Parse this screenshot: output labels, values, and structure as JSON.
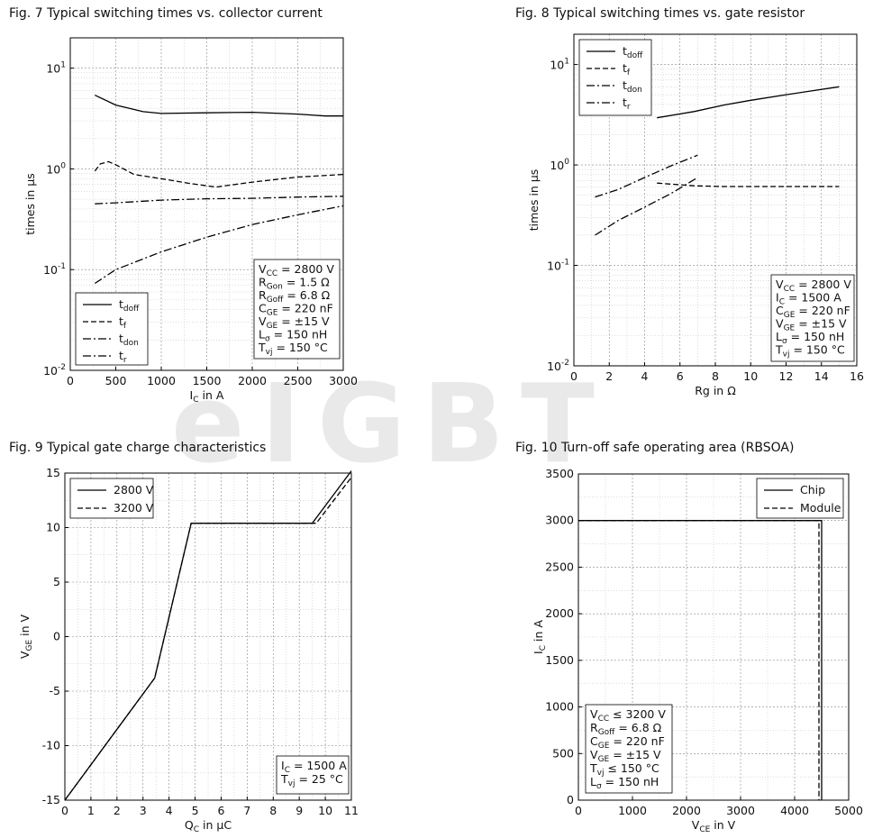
{
  "watermark": "eIGBT",
  "chart_data": [
    {
      "type": "line",
      "title": "Fig. 7  Typical switching times vs. collector current",
      "xlabel": "I_C in A",
      "ylabel": "times in µs",
      "yscale": "log",
      "xlim": [
        0,
        3000
      ],
      "ylim": [
        0.01,
        20
      ],
      "x_ticks": [
        "0",
        "500",
        "1000",
        "1500",
        "2000",
        "2500",
        "3000"
      ],
      "x_tick_values": [
        0,
        500,
        1000,
        1500,
        2000,
        2500,
        3000
      ],
      "y_ticks": [
        "10^-2",
        "10^-1",
        "10^0",
        "10^1"
      ],
      "grid": true,
      "legend_position": "bottom-left",
      "series": [
        {
          "name": "t_doff",
          "style": "solid",
          "x": [
            270,
            500,
            800,
            1000,
            1500,
            2000,
            2500,
            2800,
            3000
          ],
          "y": [
            5.4,
            4.3,
            3.7,
            3.55,
            3.6,
            3.65,
            3.5,
            3.35,
            3.35
          ]
        },
        {
          "name": "t_f",
          "style": "dash",
          "x": [
            270,
            330,
            420,
            500,
            700,
            1000,
            1300,
            1600,
            2000,
            2500,
            3000
          ],
          "y": [
            0.95,
            1.12,
            1.18,
            1.1,
            0.88,
            0.8,
            0.72,
            0.66,
            0.74,
            0.83,
            0.88
          ]
        },
        {
          "name": "t_don",
          "style": "dashdot",
          "x": [
            270,
            500,
            1000,
            1500,
            2000,
            2500,
            3000
          ],
          "y": [
            0.45,
            0.46,
            0.49,
            0.505,
            0.51,
            0.525,
            0.535
          ]
        },
        {
          "name": "t_r",
          "style": "dashdot",
          "x": [
            270,
            500,
            1000,
            1500,
            2000,
            2500,
            3000
          ],
          "y": [
            0.073,
            0.1,
            0.15,
            0.21,
            0.28,
            0.35,
            0.43
          ]
        }
      ],
      "annotation": [
        {
          "main": "V",
          "sub": "CC",
          "rest": " = 2800 V"
        },
        {
          "main": "R",
          "sub": "Gon",
          "rest": " = 1.5 Ω"
        },
        {
          "main": "R",
          "sub": "Goff",
          "rest": " = 6.8 Ω"
        },
        {
          "main": "C",
          "sub": "GE",
          "rest": " = 220 nF"
        },
        {
          "main": "V",
          "sub": "GE",
          "rest": " = ±15 V"
        },
        {
          "main": "L",
          "sub": "σ",
          "rest": " = 150 nH"
        },
        {
          "main": "T",
          "sub": "vj",
          "rest": " = 150 °C"
        }
      ]
    },
    {
      "type": "line",
      "title": "Fig. 8  Typical switching times vs. gate resistor",
      "xlabel": "Rg in Ω",
      "ylabel": "times in µs",
      "yscale": "log",
      "xlim": [
        0,
        16
      ],
      "ylim": [
        0.01,
        20
      ],
      "x_ticks": [
        "0",
        "2",
        "4",
        "6",
        "8",
        "10",
        "12",
        "14",
        "16"
      ],
      "x_tick_values": [
        0,
        2,
        4,
        6,
        8,
        10,
        12,
        14,
        16
      ],
      "y_ticks": [
        "10^-2",
        "10^-1",
        "10^0",
        "10^1"
      ],
      "grid": true,
      "legend_position": "top-left",
      "series": [
        {
          "name": "t_doff",
          "style": "solid",
          "x": [
            4.7,
            6.8,
            8.5,
            10,
            12,
            15
          ],
          "y": [
            2.95,
            3.4,
            3.95,
            4.4,
            5,
            6
          ]
        },
        {
          "name": "t_f",
          "style": "dash",
          "x": [
            4.7,
            6.8,
            8.5,
            10,
            12,
            15
          ],
          "y": [
            0.66,
            0.62,
            0.61,
            0.61,
            0.61,
            0.61
          ]
        },
        {
          "name": "t_don",
          "style": "dashdot",
          "x": [
            1.2,
            2.5,
            4,
            5.5,
            7
          ],
          "y": [
            0.48,
            0.57,
            0.75,
            0.98,
            1.25
          ]
        },
        {
          "name": "t_r",
          "style": "dashdot",
          "x": [
            1.2,
            2.5,
            4,
            5.5,
            7
          ],
          "y": [
            0.2,
            0.28,
            0.38,
            0.52,
            0.75
          ]
        }
      ],
      "annotation": [
        {
          "main": "V",
          "sub": "CC",
          "rest": " = 2800 V"
        },
        {
          "main": "I",
          "sub": "C",
          "rest": " = 1500 A"
        },
        {
          "main": "C",
          "sub": "GE",
          "rest": " = 220 nF"
        },
        {
          "main": "V",
          "sub": "GE",
          "rest": " = ±15 V"
        },
        {
          "main": "L",
          "sub": "σ",
          "rest": " = 150 nH"
        },
        {
          "main": "T",
          "sub": "vj",
          "rest": " = 150 °C"
        }
      ]
    },
    {
      "type": "line",
      "title": "Fig. 9  Typical gate charge characteristics",
      "xlabel": "Q_C in µC",
      "ylabel": "V_GE in V",
      "xlim": [
        0,
        11
      ],
      "ylim": [
        -15,
        15
      ],
      "x_ticks": [
        "0",
        "1",
        "2",
        "3",
        "4",
        "5",
        "6",
        "7",
        "8",
        "9",
        "10",
        "11"
      ],
      "x_tick_values": [
        0,
        1,
        2,
        3,
        4,
        5,
        6,
        7,
        8,
        9,
        10,
        11
      ],
      "y_ticks": [
        "-15",
        "-10",
        "-5",
        "0",
        "5",
        "10",
        "15"
      ],
      "y_tick_values": [
        -15,
        -10,
        -5,
        0,
        5,
        10,
        15
      ],
      "grid": true,
      "legend_position": "top-left",
      "series": [
        {
          "name": "2800 V",
          "style": "solid",
          "x": [
            0,
            3.45,
            4.85,
            9.5,
            11
          ],
          "y": [
            -15,
            -3.8,
            10.4,
            10.4,
            15.2
          ]
        },
        {
          "name": "3200 V",
          "style": "dash",
          "x": [
            0,
            3.45,
            4.85,
            9.65,
            11
          ],
          "y": [
            -15,
            -3.8,
            10.4,
            10.4,
            14.6
          ]
        }
      ],
      "annotation": [
        {
          "main": "I",
          "sub": "C",
          "rest": " = 1500 A"
        },
        {
          "main": "T",
          "sub": "vj",
          "rest": " = 25 °C"
        }
      ]
    },
    {
      "type": "line",
      "title": "Fig. 10  Turn-off safe operating area (RBSOA)",
      "xlabel": "V_CE in V",
      "ylabel": "I_C in A",
      "xlim": [
        0,
        5000
      ],
      "ylim": [
        0,
        3500
      ],
      "x_ticks": [
        "0",
        "1000",
        "2000",
        "3000",
        "4000",
        "5000"
      ],
      "x_tick_values": [
        0,
        1000,
        2000,
        3000,
        4000,
        5000
      ],
      "y_ticks": [
        "0",
        "500",
        "1000",
        "1500",
        "2000",
        "2500",
        "3000",
        "3500"
      ],
      "y_tick_values": [
        0,
        500,
        1000,
        1500,
        2000,
        2500,
        3000,
        3500
      ],
      "grid": true,
      "legend_position": "top-right",
      "series": [
        {
          "name": "Chip",
          "style": "solid",
          "x": [
            0,
            4500,
            4500
          ],
          "y": [
            3000,
            3000,
            0
          ]
        },
        {
          "name": "Module",
          "style": "dash",
          "x": [
            0,
            4450,
            4450
          ],
          "y": [
            3000,
            3000,
            0
          ]
        }
      ],
      "annotation": [
        {
          "main": "V",
          "sub": "CC",
          "rest": " ≤ 3200 V"
        },
        {
          "main": "R",
          "sub": "Goff",
          "rest": " = 6.8 Ω"
        },
        {
          "main": "C",
          "sub": "GE",
          "rest": " = 220 nF"
        },
        {
          "main": "V",
          "sub": "GE",
          "rest": " = ±15 V"
        },
        {
          "main": "T",
          "sub": "vj",
          "rest": " ≤ 150 °C"
        },
        {
          "main": "L",
          "sub": "σ",
          "rest": " = 150 nH"
        }
      ]
    }
  ]
}
